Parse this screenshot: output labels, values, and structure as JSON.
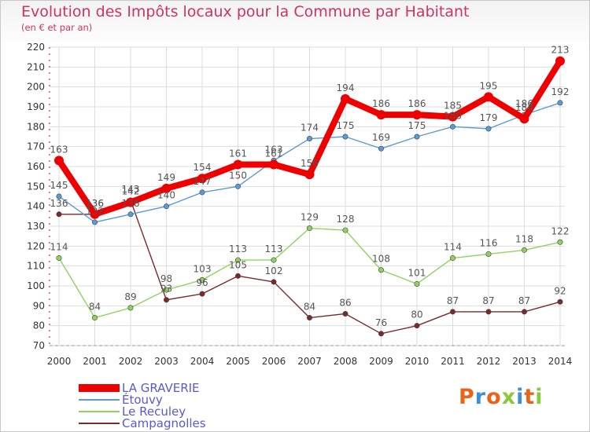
{
  "header": {
    "title": "Evolution des Impôts locaux pour la Commune par Habitant",
    "subtitle": "(en € et par an)"
  },
  "logo": {
    "text": "Proxiti",
    "colors": [
      "#e8641b",
      "#3c8fd6",
      "#e8641b",
      "#8cc83c",
      "#3c8fd6",
      "#e8641b",
      "#8cc83c"
    ]
  },
  "chart_data": {
    "type": "line",
    "title": "Evolution des Impôts locaux pour la Commune par Habitant",
    "subtitle": "(en € et par an)",
    "xlabel": "",
    "ylabel": "",
    "ylim": [
      70,
      220
    ],
    "yticks": [
      70,
      80,
      90,
      100,
      110,
      120,
      130,
      140,
      150,
      160,
      170,
      180,
      190,
      200,
      210,
      220
    ],
    "grid": true,
    "legend_position": "bottom-left",
    "x": [
      "2000",
      "2001",
      "2002",
      "2003",
      "2004",
      "2005",
      "2006",
      "2007",
      "2008",
      "2009",
      "2010",
      "2011",
      "2012",
      "2013",
      "2014"
    ],
    "series": [
      {
        "name": "LA GRAVERIE",
        "color": "#ee0000",
        "values": [
          163,
          136,
          142,
          149,
          154,
          161,
          161,
          156,
          194,
          186,
          186,
          185,
          195,
          184,
          213
        ]
      },
      {
        "name": "Étouvy",
        "color": "#5b9bd5",
        "values": [
          145,
          132,
          136,
          140,
          147,
          150,
          163,
          174,
          175,
          169,
          175,
          180,
          179,
          186,
          192
        ]
      },
      {
        "name": "Le Reculey",
        "color": "#8fd35f",
        "values": [
          114,
          84,
          89,
          98,
          103,
          113,
          113,
          129,
          128,
          108,
          101,
          114,
          116,
          118,
          122
        ]
      },
      {
        "name": "Campagnolles",
        "color": "#7a2a2a",
        "values": [
          136,
          136,
          143,
          93,
          96,
          105,
          102,
          84,
          86,
          76,
          80,
          87,
          87,
          87,
          92
        ]
      }
    ]
  }
}
